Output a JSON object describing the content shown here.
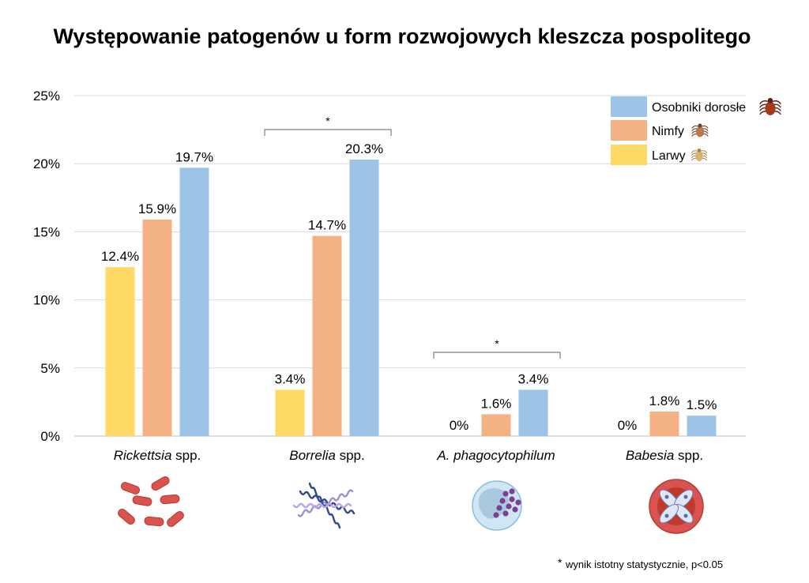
{
  "colors": {
    "larwy": "#FFD966",
    "nimfy": "#F4B183",
    "adult": "#9DC3E6",
    "grid": "#d9d9d9",
    "axis": "#bfbfbf"
  },
  "footnote": {
    "star": "*",
    "text": "wynik istotny statystycznie, p<0.05"
  },
  "significance": [
    {
      "category_index": 1,
      "symbol": "*"
    },
    {
      "category_index": 2,
      "symbol": "*"
    }
  ],
  "pathogen_icons": [
    "rod-bacteria-icon",
    "spirochete-icon",
    "infected-cell-icon",
    "babesia-erythrocyte-icon"
  ],
  "legend_icons": [
    "adult-tick-icon",
    "nymph-tick-icon",
    "larva-tick-icon"
  ],
  "chart_data": {
    "type": "bar",
    "title": "Występowanie patogenów u form rozwojowych kleszcza pospolitego",
    "categories": [
      {
        "italic": "Rickettsia",
        "rest": " spp."
      },
      {
        "italic": "Borrelia",
        "rest": " spp."
      },
      {
        "italic": "A. phagocytophilum",
        "rest": ""
      },
      {
        "italic": "Babesia",
        "rest": " spp."
      }
    ],
    "series": [
      {
        "name": "Larwy",
        "values": [
          12.4,
          3.4,
          0,
          0
        ],
        "labels": [
          "12.4%",
          "3.4%",
          "0%",
          "0%"
        ]
      },
      {
        "name": "Nimfy",
        "values": [
          15.9,
          14.7,
          1.6,
          1.8
        ],
        "labels": [
          "15.9%",
          "14.7%",
          "1.6%",
          "1.8%"
        ]
      },
      {
        "name": "Osobniki dorosłe",
        "values": [
          19.7,
          20.3,
          3.4,
          1.5
        ],
        "labels": [
          "19.7%",
          "20.3%",
          "3.4%",
          "1.5%"
        ]
      }
    ],
    "yticks": [
      {
        "value": 0,
        "label": "0%"
      },
      {
        "value": 5,
        "label": "5%"
      },
      {
        "value": 10,
        "label": "10%"
      },
      {
        "value": 15,
        "label": "15%"
      },
      {
        "value": 20,
        "label": "20%"
      },
      {
        "value": 25,
        "label": "25%"
      }
    ],
    "ylim": [
      0,
      25
    ],
    "grid": true,
    "legend_position": "top-right",
    "legend_order": [
      "Osobniki dorosłe",
      "Nimfy",
      "Larwy"
    ]
  }
}
